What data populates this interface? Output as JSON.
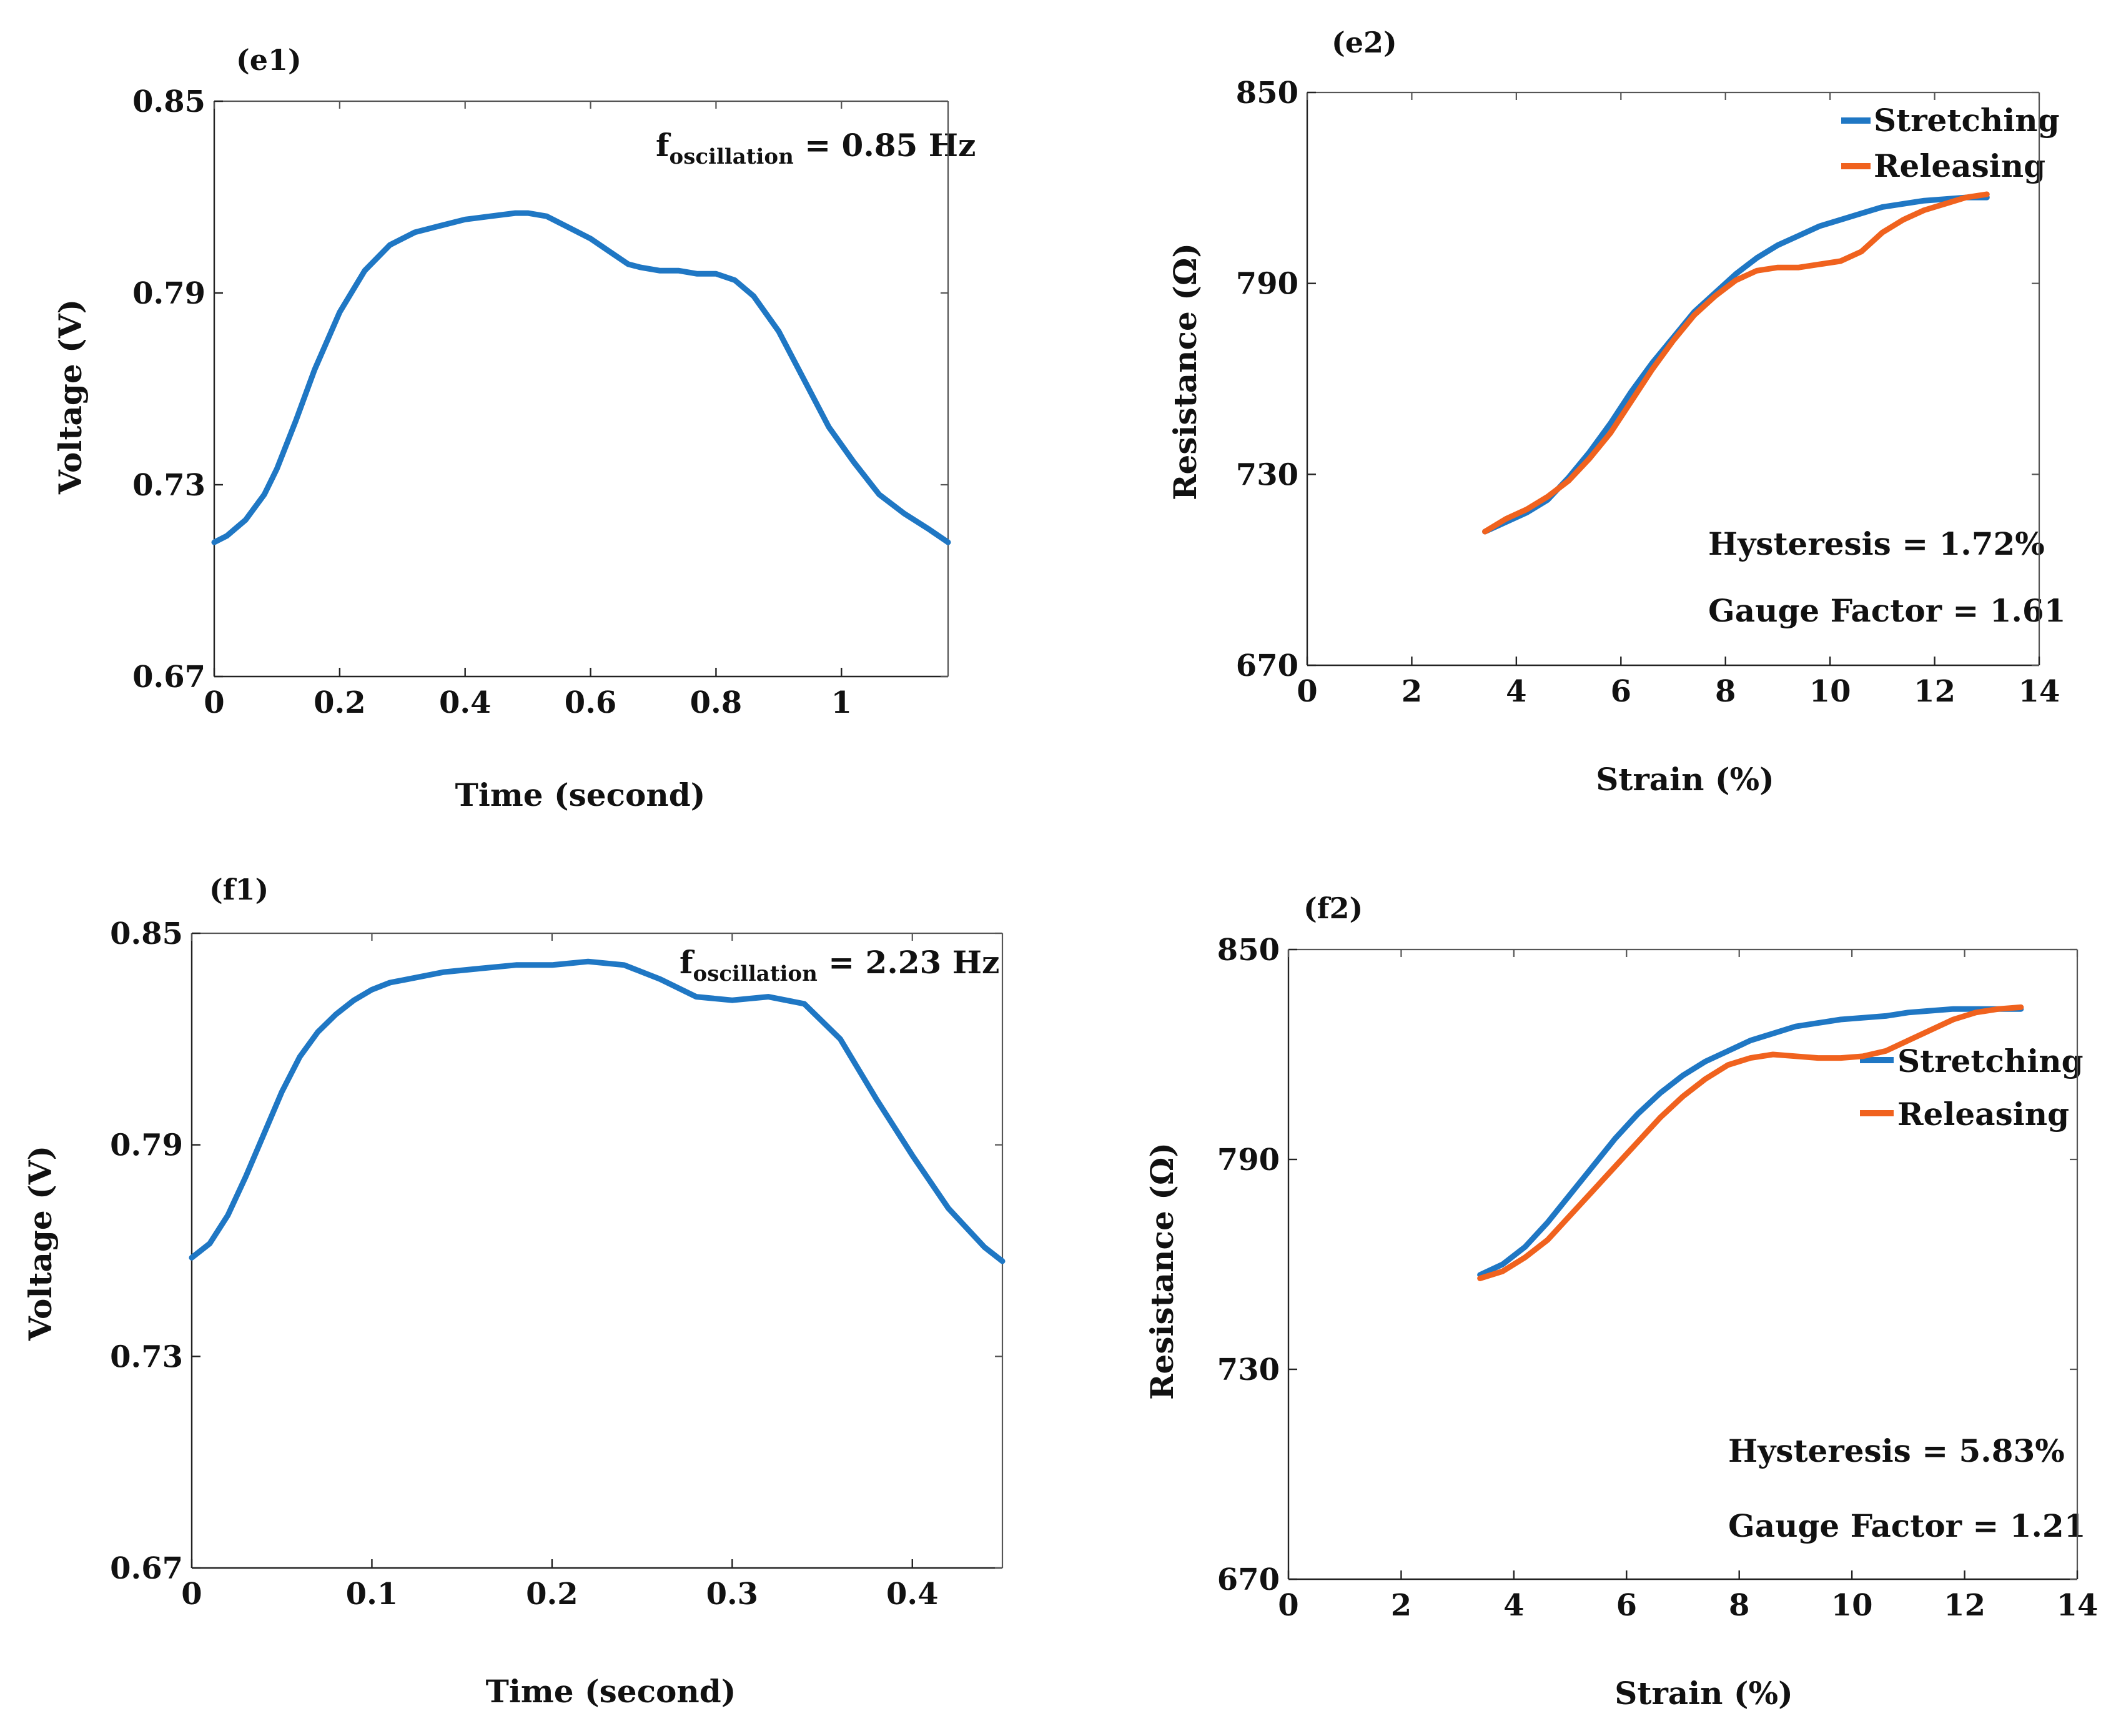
{
  "colors": {
    "stretching": "#1f77c4",
    "releasing": "#f0621e",
    "voltage": "#1f77c4"
  },
  "chart_data": [
    {
      "id": "e1",
      "panel_label": "(e1)",
      "type": "line",
      "xlabel": "Time (second)",
      "ylabel": "Voltage (V)",
      "xlim": [
        0,
        1.17
      ],
      "ylim": [
        0.67,
        0.85
      ],
      "xticks": [
        0,
        0.2,
        0.4,
        0.6,
        0.8,
        1
      ],
      "xtick_labels": [
        "0",
        "0.2",
        "0.4",
        "0.6",
        "0.8",
        "1"
      ],
      "yticks": [
        0.67,
        0.73,
        0.79,
        0.85
      ],
      "ytick_labels": [
        "0.67",
        "0.73",
        "0.79",
        "0.85"
      ],
      "annotation": {
        "main": "f",
        "sub": "oscillation",
        "rest": " = 0.85 Hz"
      },
      "series": [
        {
          "name": "Voltage",
          "color": "#1f77c4",
          "x": [
            0,
            0.02,
            0.05,
            0.08,
            0.1,
            0.13,
            0.16,
            0.2,
            0.24,
            0.28,
            0.32,
            0.36,
            0.4,
            0.44,
            0.48,
            0.5,
            0.53,
            0.56,
            0.6,
            0.63,
            0.66,
            0.68,
            0.71,
            0.74,
            0.77,
            0.8,
            0.83,
            0.86,
            0.9,
            0.94,
            0.98,
            1.02,
            1.06,
            1.1,
            1.14,
            1.17
          ],
          "y": [
            0.712,
            0.714,
            0.719,
            0.727,
            0.735,
            0.75,
            0.766,
            0.784,
            0.797,
            0.805,
            0.809,
            0.811,
            0.813,
            0.814,
            0.815,
            0.815,
            0.814,
            0.811,
            0.807,
            0.803,
            0.799,
            0.798,
            0.797,
            0.797,
            0.796,
            0.796,
            0.794,
            0.789,
            0.778,
            0.763,
            0.748,
            0.737,
            0.727,
            0.721,
            0.716,
            0.712
          ]
        }
      ]
    },
    {
      "id": "e2",
      "panel_label": "(e2)",
      "type": "line",
      "xlabel": "Strain (%)",
      "ylabel": "Resistance (Ω)",
      "xlim": [
        0,
        14
      ],
      "ylim": [
        670,
        850
      ],
      "xticks": [
        0,
        2,
        4,
        6,
        8,
        10,
        12,
        14
      ],
      "xtick_labels": [
        "0",
        "2",
        "4",
        "6",
        "8",
        "10",
        "12",
        "14"
      ],
      "yticks": [
        670,
        730,
        790,
        850
      ],
      "ytick_labels": [
        "670",
        "730",
        "790",
        "850"
      ],
      "legend": {
        "position": "top-right",
        "entries": [
          "Stretching",
          "Releasing"
        ]
      },
      "notes": [
        "Hysteresis = 1.72%",
        "Gauge Factor = 1.61"
      ],
      "series": [
        {
          "name": "Stretching",
          "color": "#1f77c4",
          "x": [
            3.4,
            3.8,
            4.2,
            4.6,
            5,
            5.4,
            5.8,
            6.2,
            6.6,
            7,
            7.4,
            7.8,
            8.2,
            8.6,
            9,
            9.4,
            9.8,
            10.2,
            10.6,
            11,
            11.4,
            11.8,
            12.2,
            12.6,
            13
          ],
          "y": [
            712,
            715,
            718,
            722,
            729,
            737,
            746,
            756,
            765,
            773,
            781,
            787,
            793,
            798,
            802,
            805,
            808,
            810,
            812,
            814,
            815,
            816,
            816.5,
            817,
            817
          ]
        },
        {
          "name": "Releasing",
          "color": "#f0621e",
          "x": [
            3.4,
            3.8,
            4.2,
            4.6,
            5,
            5.4,
            5.8,
            6.2,
            6.6,
            7,
            7.4,
            7.8,
            8.2,
            8.6,
            9,
            9.4,
            9.8,
            10.2,
            10.6,
            11,
            11.4,
            11.8,
            12.2,
            12.6,
            13
          ],
          "y": [
            712,
            716,
            719,
            723,
            728,
            735,
            743,
            753,
            763,
            772,
            780,
            786,
            791,
            794,
            795,
            795,
            796,
            797,
            800,
            806,
            810,
            813,
            815,
            817,
            818
          ]
        }
      ]
    },
    {
      "id": "f1",
      "panel_label": "(f1)",
      "type": "line",
      "xlabel": "Time (second)",
      "ylabel": "Voltage (V)",
      "xlim": [
        0,
        0.45
      ],
      "ylim": [
        0.67,
        0.85
      ],
      "xticks": [
        0,
        0.1,
        0.2,
        0.3,
        0.4
      ],
      "xtick_labels": [
        "0",
        "0.1",
        "0.2",
        "0.3",
        "0.4"
      ],
      "yticks": [
        0.67,
        0.73,
        0.79,
        0.85
      ],
      "ytick_labels": [
        "0.67",
        "0.73",
        "0.79",
        "0.85"
      ],
      "annotation": {
        "main": "f",
        "sub": "oscillation",
        "rest": " = 2.23 Hz"
      },
      "series": [
        {
          "name": "Voltage",
          "color": "#1f77c4",
          "x": [
            0,
            0.01,
            0.02,
            0.03,
            0.04,
            0.05,
            0.06,
            0.07,
            0.08,
            0.09,
            0.1,
            0.11,
            0.12,
            0.14,
            0.16,
            0.18,
            0.2,
            0.22,
            0.24,
            0.26,
            0.28,
            0.3,
            0.32,
            0.34,
            0.36,
            0.38,
            0.4,
            0.42,
            0.44,
            0.45
          ],
          "y": [
            0.758,
            0.762,
            0.77,
            0.781,
            0.793,
            0.805,
            0.815,
            0.822,
            0.827,
            0.831,
            0.834,
            0.836,
            0.837,
            0.839,
            0.84,
            0.841,
            0.841,
            0.842,
            0.841,
            0.837,
            0.832,
            0.831,
            0.832,
            0.83,
            0.82,
            0.803,
            0.787,
            0.772,
            0.761,
            0.757
          ]
        }
      ]
    },
    {
      "id": "f2",
      "panel_label": "(f2)",
      "type": "line",
      "xlabel": "Strain (%)",
      "ylabel": "Resistance (Ω)",
      "xlim": [
        0,
        14
      ],
      "ylim": [
        670,
        850
      ],
      "xticks": [
        0,
        2,
        4,
        6,
        8,
        10,
        12,
        14
      ],
      "xtick_labels": [
        "0",
        "2",
        "4",
        "6",
        "8",
        "10",
        "12",
        "14"
      ],
      "yticks": [
        670,
        730,
        790,
        850
      ],
      "ytick_labels": [
        "670",
        "730",
        "790",
        "850"
      ],
      "legend": {
        "position": "top-right",
        "entries": [
          "Stretching",
          "Releasing"
        ]
      },
      "notes": [
        "Hysteresis = 5.83%",
        "Gauge Factor = 1.21"
      ],
      "series": [
        {
          "name": "Stretching",
          "color": "#1f77c4",
          "x": [
            3.4,
            3.8,
            4.2,
            4.6,
            5,
            5.4,
            5.8,
            6.2,
            6.6,
            7,
            7.4,
            7.8,
            8.2,
            8.6,
            9,
            9.4,
            9.8,
            10.2,
            10.6,
            11,
            11.4,
            11.8,
            12.2,
            12.6,
            13
          ],
          "y": [
            757,
            760,
            765,
            772,
            780,
            788,
            796,
            803,
            809,
            814,
            818,
            821,
            824,
            826,
            828,
            829,
            830,
            830.5,
            831,
            832,
            832.5,
            833,
            833,
            833,
            833
          ]
        },
        {
          "name": "Releasing",
          "color": "#f0621e",
          "x": [
            3.4,
            3.8,
            4.2,
            4.6,
            5,
            5.4,
            5.8,
            6.2,
            6.6,
            7,
            7.4,
            7.8,
            8.2,
            8.6,
            9,
            9.4,
            9.8,
            10.2,
            10.6,
            11,
            11.4,
            11.8,
            12.2,
            12.6,
            13
          ],
          "y": [
            756,
            758,
            762,
            767,
            774,
            781,
            788,
            795,
            802,
            808,
            813,
            817,
            819,
            820,
            819.5,
            819,
            819,
            819.5,
            821,
            824,
            827,
            830,
            832,
            833,
            833.5
          ]
        }
      ]
    }
  ]
}
